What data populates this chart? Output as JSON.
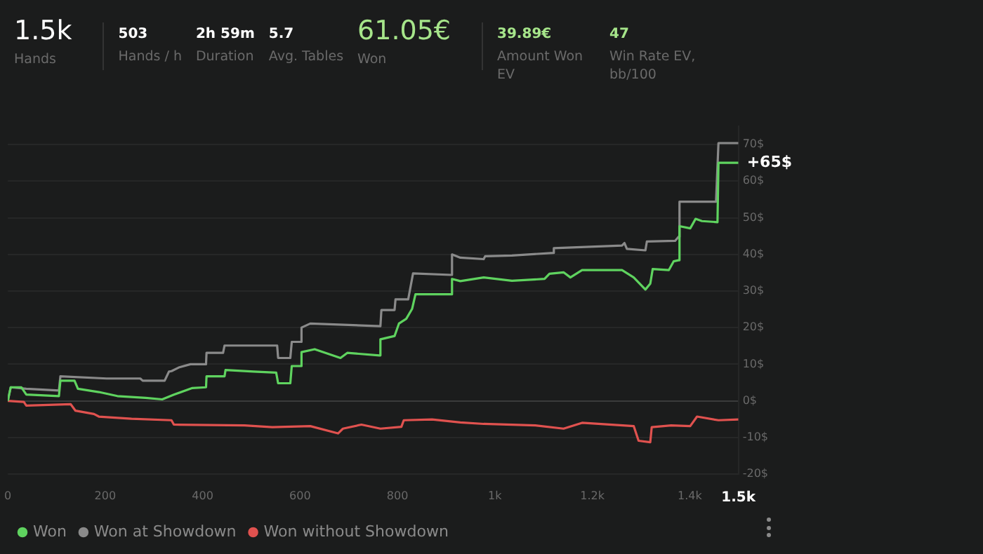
{
  "chart_data": {
    "type": "line",
    "annotations": [
      "1.5k",
      "Hands",
      "503",
      "Hands / h",
      "2h 59m",
      "Duration",
      "5.7",
      "Avg. Tables",
      "61.05€",
      "Won",
      "39.89€",
      "Amount Won EV",
      "47",
      "Win Rate EV, bb/100",
      {
        "text": "+65$",
        "x": 1500,
        "y": 65
      }
    ],
    "xlim": [
      0,
      1500
    ],
    "xticks": [
      0,
      200,
      400,
      600,
      800,
      {
        "value": 1000,
        "label": "1k"
      },
      {
        "value": 1200,
        "label": "1.2k"
      },
      {
        "value": 1400,
        "label": "1.4k"
      },
      {
        "value": 1500,
        "label": "1.5k"
      }
    ],
    "ylim": [
      -20,
      75
    ],
    "yticks": [
      {
        "value": -20,
        "label": "-20$"
      },
      {
        "value": -10,
        "label": "-10$"
      },
      {
        "value": 0,
        "label": "0$"
      },
      {
        "value": 10,
        "label": "10$"
      },
      {
        "value": 20,
        "label": "20$"
      },
      {
        "value": 30,
        "label": "30$"
      },
      {
        "value": 40,
        "label": "40$"
      },
      {
        "value": 50,
        "label": "50$"
      },
      {
        "value": 60,
        "label": "60$"
      },
      {
        "value": 70,
        "label": "70$"
      }
    ],
    "grid": "y",
    "legend": "bottom left",
    "marker": "none",
    "line_style": "solid",
    "series": [
      {
        "name": "Won",
        "color": "#5fd35f",
        "x": [
          0,
          6,
          28,
          38,
          105,
          108,
          137,
          144,
          187,
          225,
          283,
          317,
          341,
          379,
          407,
          408,
          445,
          447,
          505,
          551,
          555,
          580,
          583,
          601,
          603,
          630,
          683,
          697,
          763,
          765,
          794,
          803,
          818,
          830,
          837,
          910,
          912,
          929,
          977,
          1035,
          1102,
          1112,
          1141,
          1155,
          1179,
          1261,
          1285,
          1309,
          1319,
          1324,
          1357,
          1367,
          1377,
          1379,
          1401,
          1412,
          1425,
          1457,
          1459,
          1500
        ],
        "values": [
          0,
          3.7,
          3.7,
          1.7,
          1.3,
          5.5,
          5.5,
          3.3,
          2.4,
          1.3,
          0.8,
          0.4,
          1.7,
          3.5,
          3.7,
          6.7,
          6.7,
          8.4,
          8,
          7.7,
          4.8,
          4.8,
          9.5,
          9.5,
          13.3,
          14.1,
          11.7,
          13.1,
          12.4,
          16.8,
          17.7,
          21.1,
          22.4,
          25.1,
          29.1,
          29.1,
          33.3,
          32.7,
          33.7,
          32.8,
          33.3,
          34.7,
          35.1,
          33.7,
          35.7,
          35.7,
          33.7,
          30.4,
          32,
          36,
          35.7,
          38.1,
          38.4,
          47.7,
          47.1,
          49.7,
          49.1,
          48.8,
          65,
          65
        ]
      },
      {
        "name": "Won at Showdown",
        "color": "#8a8a8a",
        "x": [
          0,
          6,
          38,
          105,
          108,
          203,
          272,
          277,
          322,
          331,
          336,
          351,
          375,
          407,
          408,
          442,
          445,
          553,
          555,
          580,
          583,
          601,
          603,
          621,
          765,
          767,
          794,
          796,
          822,
          832,
          910,
          912,
          929,
          977,
          980,
          1035,
          1120,
          1121,
          1261,
          1266,
          1271,
          1309,
          1312,
          1370,
          1377,
          1379,
          1454,
          1459,
          1500
        ],
        "values": [
          0,
          3.7,
          3.3,
          2.8,
          6.7,
          6.1,
          6.1,
          5.5,
          5.5,
          8,
          8.1,
          9.1,
          10,
          10,
          13.1,
          13.1,
          15.1,
          15.1,
          11.7,
          11.7,
          16.1,
          16.1,
          20,
          21.1,
          20.4,
          24.8,
          24.8,
          27.7,
          27.7,
          34.8,
          34.4,
          40,
          39.1,
          38.7,
          39.5,
          39.7,
          40.4,
          41.7,
          42.4,
          43.1,
          41.5,
          41.1,
          43.5,
          43.7,
          44.8,
          54.4,
          54.4,
          70.4,
          70.4
        ]
      },
      {
        "name": "Won without Showdown",
        "color": "#e0524f",
        "x": [
          0,
          33,
          38,
          129,
          139,
          177,
          187,
          254,
          336,
          341,
          486,
          543,
          621,
          678,
          688,
          726,
          765,
          808,
          813,
          871,
          929,
          977,
          1083,
          1141,
          1179,
          1285,
          1295,
          1319,
          1322,
          1362,
          1401,
          1415,
          1459,
          1500
        ],
        "values": [
          0,
          -0.3,
          -1.3,
          -0.9,
          -2.7,
          -3.6,
          -4.3,
          -4.9,
          -5.3,
          -6.5,
          -6.7,
          -7.2,
          -6.9,
          -8.9,
          -7.6,
          -6.5,
          -7.6,
          -7.1,
          -5.3,
          -5.1,
          -5.9,
          -6.3,
          -6.7,
          -7.6,
          -6,
          -6.9,
          -10.9,
          -11.3,
          -7.2,
          -6.7,
          -6.9,
          -4.3,
          -5.3,
          -5.1
        ]
      }
    ]
  }
}
